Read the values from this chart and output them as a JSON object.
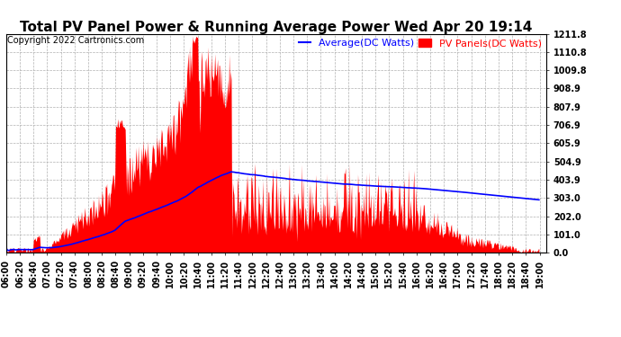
{
  "title": "Total PV Panel Power & Running Average Power Wed Apr 20 19:14",
  "copyright": "Copyright 2022 Cartronics.com",
  "legend_avg": "Average(DC Watts)",
  "legend_pv": "PV Panels(DC Watts)",
  "ylabel_values": [
    0.0,
    101.0,
    202.0,
    303.0,
    403.9,
    504.9,
    605.9,
    706.9,
    807.9,
    908.9,
    1009.8,
    1110.8,
    1211.8
  ],
  "ymax": 1211.8,
  "ymin": 0.0,
  "bg_color": "#ffffff",
  "grid_color": "#b0b0b0",
  "fill_color": "#ff0000",
  "avg_line_color": "#0000ff",
  "title_fontsize": 11,
  "tick_fontsize": 7,
  "legend_fontsize": 8,
  "copyright_fontsize": 7
}
